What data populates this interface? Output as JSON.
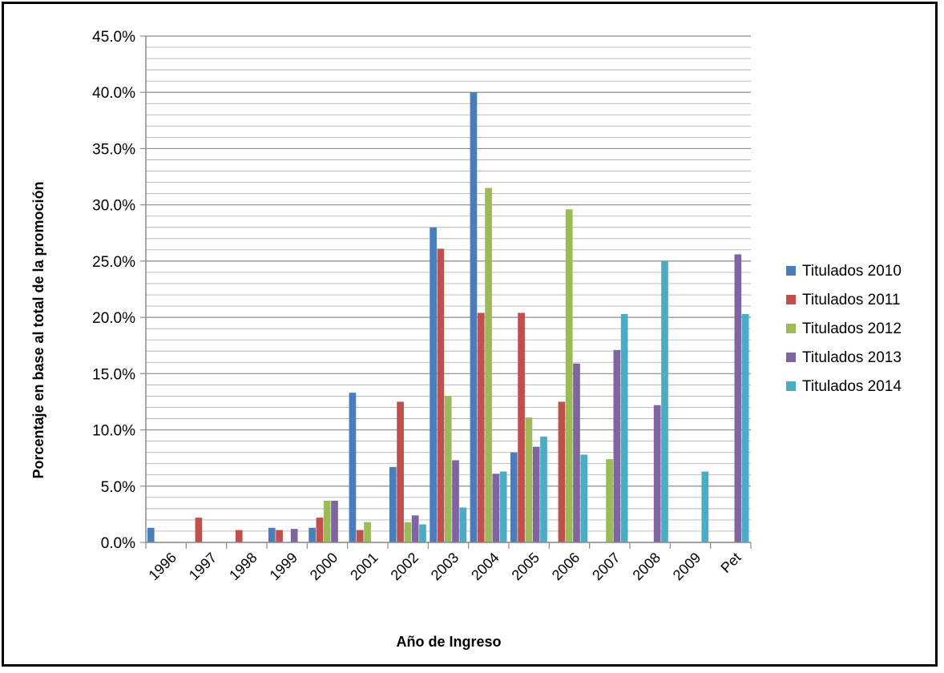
{
  "chart_data": {
    "type": "bar",
    "categories": [
      "1996",
      "1997",
      "1998",
      "1999",
      "2000",
      "2001",
      "2002",
      "2003",
      "2004",
      "2005",
      "2006",
      "2007",
      "2008",
      "2009",
      "Pet"
    ],
    "series": [
      {
        "name": "Titulados 2010",
        "color": "#4a7ebb",
        "values": [
          1.3,
          0,
          0,
          1.3,
          1.3,
          13.3,
          6.7,
          28.0,
          40.0,
          8.0,
          0,
          0,
          0,
          0,
          0
        ]
      },
      {
        "name": "Titulados 2011",
        "color": "#c0504d",
        "values": [
          0,
          2.2,
          1.1,
          1.1,
          2.2,
          1.1,
          12.5,
          26.1,
          20.4,
          20.4,
          12.5,
          0,
          0,
          0,
          0
        ]
      },
      {
        "name": "Titulados 2012",
        "color": "#9bbb59",
        "values": [
          0,
          0,
          0,
          0,
          3.7,
          1.8,
          1.8,
          13.0,
          31.5,
          11.1,
          29.6,
          7.4,
          0,
          0,
          0
        ]
      },
      {
        "name": "Titulados 2013",
        "color": "#8064a2",
        "values": [
          0,
          0,
          0,
          1.2,
          3.7,
          0,
          2.4,
          7.3,
          6.1,
          8.5,
          15.9,
          17.1,
          12.2,
          0,
          25.6
        ]
      },
      {
        "name": "Titulados 2014",
        "color": "#4bacc6",
        "values": [
          0,
          0,
          0,
          0,
          0,
          0,
          1.6,
          3.1,
          6.3,
          9.4,
          7.8,
          20.3,
          25.0,
          6.3,
          20.3
        ]
      }
    ],
    "y_ticks": [
      "0.0%",
      "5.0%",
      "10.0%",
      "15.0%",
      "20.0%",
      "25.0%",
      "30.0%",
      "35.0%",
      "40.0%",
      "45.0%"
    ],
    "ylim": [
      0,
      45
    ],
    "minor_grid_step": 1,
    "xlabel": "Año de Ingreso",
    "ylabel": "Porcentaje en base al total de la promoción",
    "title": "",
    "legend_position": "right",
    "grid": true
  }
}
